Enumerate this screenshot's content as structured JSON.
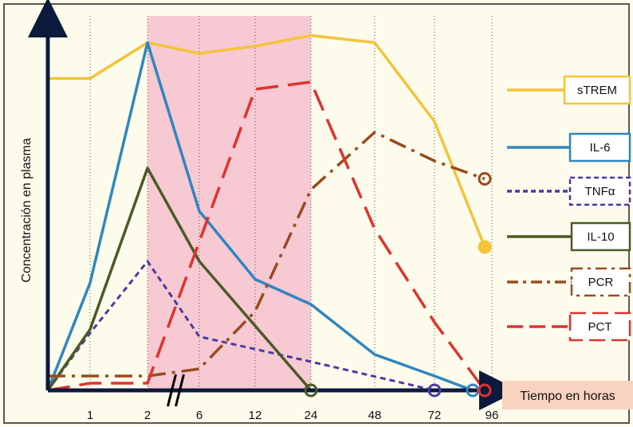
{
  "chart_data": {
    "type": "line",
    "ylabel": "Concentración en plasma",
    "xlabel": "Tiempo en horas",
    "categories": [
      "0",
      "1",
      "2",
      "6",
      "12",
      "24",
      "48",
      "72",
      "96"
    ],
    "x_tick_labels": [
      "1",
      "2",
      "6",
      "12",
      "24",
      "48",
      "72",
      "96"
    ],
    "axis_break_between": [
      "2",
      "6"
    ],
    "shaded_band": {
      "from": "2",
      "to": "24",
      "color": "#f6c9d3"
    },
    "grid": "vertical dotted",
    "ylim": [
      0,
      100
    ],
    "series": [
      {
        "name": "sTREM",
        "color": "#f5c33a",
        "dash": "solid",
        "points": [
          [
            0,
            87
          ],
          [
            1,
            87
          ],
          [
            2,
            97
          ],
          [
            6,
            94
          ],
          [
            12,
            96
          ],
          [
            24,
            99
          ],
          [
            48,
            97
          ],
          [
            72,
            75
          ],
          [
            93,
            40
          ]
        ]
      },
      {
        "name": "IL-6",
        "color": "#2f86c0",
        "dash": "solid",
        "points": [
          [
            0,
            0
          ],
          [
            1,
            30
          ],
          [
            2,
            97
          ],
          [
            6,
            50
          ],
          [
            12,
            31
          ],
          [
            24,
            24
          ],
          [
            48,
            10
          ],
          [
            72,
            4
          ],
          [
            88,
            0
          ]
        ]
      },
      {
        "name": "TNFα",
        "color": "#4a3aa6",
        "dash": "dashed",
        "points": [
          [
            0,
            0
          ],
          [
            1,
            16
          ],
          [
            2,
            36
          ],
          [
            6,
            15
          ],
          [
            24,
            8
          ],
          [
            72,
            0
          ]
        ]
      },
      {
        "name": "IL-10",
        "color": "#4c5a26",
        "dash": "solid",
        "points": [
          [
            0,
            0
          ],
          [
            1,
            17
          ],
          [
            2,
            62
          ],
          [
            6,
            36
          ],
          [
            12,
            18
          ],
          [
            24,
            0
          ]
        ]
      },
      {
        "name": "PCR",
        "color": "#9a4a1f",
        "dash": "dashdot",
        "points": [
          [
            0,
            4
          ],
          [
            2,
            4
          ],
          [
            6,
            6
          ],
          [
            12,
            22
          ],
          [
            24,
            56
          ],
          [
            48,
            72
          ],
          [
            72,
            64
          ],
          [
            93,
            59
          ]
        ]
      },
      {
        "name": "PCT",
        "color": "#e0322c",
        "dash": "longdash",
        "points": [
          [
            0,
            0
          ],
          [
            1,
            2
          ],
          [
            2,
            2
          ],
          [
            12,
            84
          ],
          [
            24,
            86
          ],
          [
            48,
            45
          ],
          [
            72,
            19
          ],
          [
            93,
            0
          ]
        ]
      }
    ],
    "end_markers": [
      {
        "series": "sTREM",
        "at": [
          93,
          40
        ],
        "style": "filled"
      },
      {
        "series": "PCR",
        "at": [
          93,
          59
        ],
        "style": "ring"
      },
      {
        "series": "IL-10",
        "at": [
          24,
          0
        ],
        "style": "ring"
      },
      {
        "series": "TNFα",
        "at": [
          72,
          0
        ],
        "style": "ring"
      },
      {
        "series": "IL-6",
        "at": [
          88,
          0
        ],
        "style": "ring"
      },
      {
        "series": "PCT",
        "at": [
          93,
          0
        ],
        "style": "ring"
      }
    ],
    "legend": {
      "position": "right",
      "entries": [
        "sTREM",
        "IL-6",
        "TNFα",
        "IL-10",
        "PCR",
        "PCT"
      ]
    },
    "xlabel_box_color": "#f9d3bf",
    "axis_color": "#0b1a3c"
  }
}
